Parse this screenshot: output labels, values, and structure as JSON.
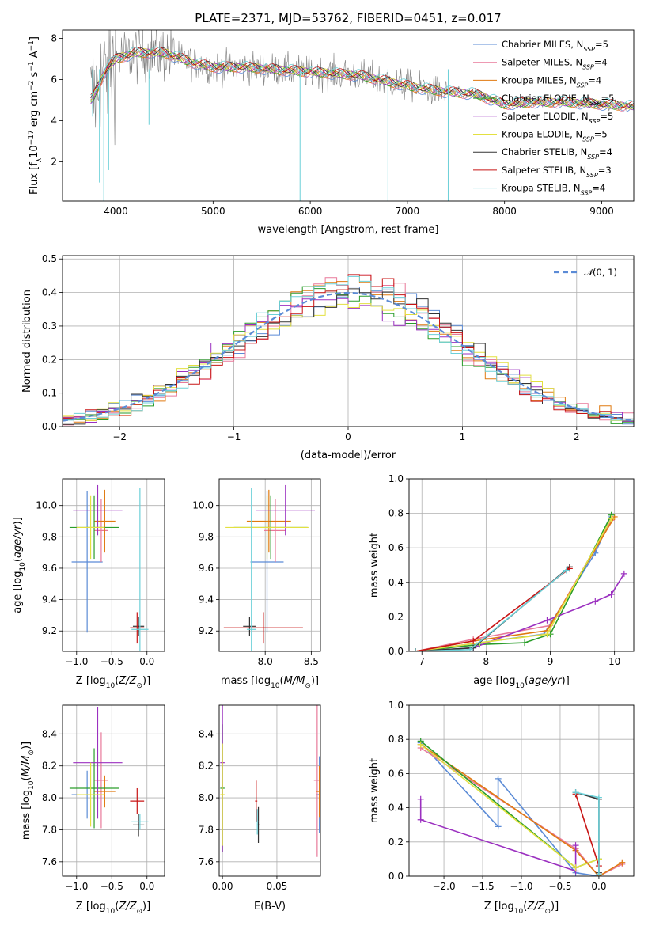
{
  "colors": {
    "Chabrier MILES": "#5b8bd6",
    "Salpeter MILES": "#e8799a",
    "Kroupa MILES": "#e07a10",
    "Chabrier ELODIE": "#2a9d2a",
    "Salpeter ELODIE": "#9b30c0",
    "Kroupa ELODIE": "#e3e040",
    "Chabrier STELIB": "#333333",
    "Salpeter STELIB": "#c81414",
    "Kroupa STELIB": "#6cd0d8"
  },
  "chart_data": [
    {
      "type": "line",
      "title": "PLATE=2371, MJD=53762, FIBERID=0451, z=0.017",
      "xlabel": "wavelength [Angstrom, rest frame]",
      "ylabel": "Flux [f_λ 10^-17 erg cm^-2 s^-1 A^-1]",
      "xlim": [
        3450,
        9330
      ],
      "ylim": [
        0.1,
        8.4
      ],
      "xticks": [
        4000,
        5000,
        6000,
        7000,
        8000,
        9000
      ],
      "yticks": [
        2,
        4,
        6,
        8
      ],
      "legend_position": "top-right",
      "legend": [
        "Chabrier MILES, N_SSP=5",
        "Salpeter MILES, N_SSP=4",
        "Kroupa MILES, N_SSP=4",
        "Chabrier ELODIE, N_SSP=5",
        "Salpeter ELODIE, N_SSP=5",
        "Kroupa ELODIE, N_SSP=5",
        "Chabrier STELIB, N_SSP=4",
        "Salpeter STELIB, N_SSP=3",
        "Kroupa STELIB, N_SSP=4"
      ],
      "spectrum_approx": {
        "x": [
          3750,
          3900,
          4000,
          4200,
          4500,
          4800,
          5000,
          5300,
          5600,
          5900,
          6200,
          6500,
          6800,
          7100,
          7400,
          7700,
          8000,
          8300,
          8600,
          9000,
          9300
        ],
        "y": [
          5.0,
          6.5,
          7.0,
          7.3,
          7.3,
          6.8,
          6.6,
          6.6,
          6.5,
          6.4,
          6.3,
          6.2,
          5.9,
          5.6,
          5.4,
          5.3,
          4.8,
          4.9,
          4.9,
          4.8,
          4.7
        ]
      }
    },
    {
      "type": "bar",
      "xlabel": "(data-model)/error",
      "ylabel": "Normed distribution",
      "xlim": [
        -2.5,
        2.5
      ],
      "ylim": [
        0,
        0.51
      ],
      "xticks": [
        -2,
        -1,
        0,
        1,
        2
      ],
      "yticks": [
        0.0,
        0.1,
        0.2,
        0.3,
        0.4,
        0.5
      ],
      "grid": true,
      "legend": [
        "N(0,1)"
      ],
      "legend_position": "top-right",
      "histogram_approx": {
        "bin_edges_range": [
          -2.5,
          2.5
        ],
        "bins": 50
      }
    },
    {
      "type": "scatter",
      "xlabel": "Z [log10(Z/Z_sun)]",
      "ylabel": "age [log10(age/yr)]",
      "xlim": [
        -1.2,
        0.25
      ],
      "ylim": [
        9.07,
        10.17
      ],
      "xticks": [
        -1.0,
        -0.5,
        0.0
      ],
      "yticks": [
        9.2,
        9.4,
        9.6,
        9.8,
        10.0
      ],
      "grid": true,
      "points": [
        {
          "model": "Chabrier MILES",
          "x": -0.85,
          "y": 9.64
        },
        {
          "model": "Salpeter MILES",
          "x": -0.65,
          "y": 9.84
        },
        {
          "model": "Kroupa MILES",
          "x": -0.6,
          "y": 9.9
        },
        {
          "model": "Chabrier ELODIE",
          "x": -0.75,
          "y": 9.86
        },
        {
          "model": "Salpeter ELODIE",
          "x": -0.7,
          "y": 9.97
        },
        {
          "model": "Kroupa ELODIE",
          "x": -0.8,
          "y": 9.86
        },
        {
          "model": "Chabrier STELIB",
          "x": -0.12,
          "y": 9.23
        },
        {
          "model": "Salpeter STELIB",
          "x": -0.14,
          "y": 9.22
        },
        {
          "model": "Kroupa STELIB",
          "x": -0.1,
          "y": 9.21
        }
      ]
    },
    {
      "type": "scatter",
      "xlabel": "mass [log10(M/M_sun)]",
      "ylabel": "",
      "xlim": [
        7.5,
        8.6
      ],
      "ylim": [
        9.07,
        10.17
      ],
      "xticks": [
        8.0,
        8.5
      ],
      "yticks": [
        9.2,
        9.4,
        9.6,
        9.8,
        10.0
      ],
      "grid": true,
      "points": [
        {
          "model": "Chabrier MILES",
          "x": 8.02,
          "y": 9.64
        },
        {
          "model": "Salpeter MILES",
          "x": 8.11,
          "y": 9.84
        },
        {
          "model": "Kroupa MILES",
          "x": 8.04,
          "y": 9.9
        },
        {
          "model": "Chabrier ELODIE",
          "x": 8.06,
          "y": 9.86
        },
        {
          "model": "Salpeter ELODIE",
          "x": 8.22,
          "y": 9.97
        },
        {
          "model": "Kroupa ELODIE",
          "x": 8.02,
          "y": 9.86
        },
        {
          "model": "Chabrier STELIB",
          "x": 7.83,
          "y": 9.23
        },
        {
          "model": "Salpeter STELIB",
          "x": 7.98,
          "y": 9.22
        },
        {
          "model": "Kroupa STELIB",
          "x": 7.85,
          "y": 9.21
        }
      ]
    },
    {
      "type": "line",
      "xlabel": "age [log10(age/yr)]",
      "ylabel": "mass weight",
      "xlim": [
        6.8,
        10.3
      ],
      "ylim": [
        0,
        1.0
      ],
      "xticks": [
        7,
        8,
        9,
        10
      ],
      "yticks": [
        0.0,
        0.2,
        0.4,
        0.6,
        0.8,
        1.0
      ],
      "grid": true,
      "series": [
        {
          "model": "Chabrier MILES",
          "x": [
            6.9,
            7.9,
            8.9,
            9.7,
            9.95
          ],
          "y": [
            0.0,
            0.05,
            0.1,
            0.57,
            0.78
          ]
        },
        {
          "model": "Salpeter MILES",
          "x": [
            6.9,
            7.8,
            9.0,
            9.95
          ],
          "y": [
            0.0,
            0.07,
            0.15,
            0.76
          ]
        },
        {
          "model": "Kroupa MILES",
          "x": [
            6.9,
            7.8,
            8.95,
            10.0
          ],
          "y": [
            0.0,
            0.06,
            0.12,
            0.78
          ]
        },
        {
          "model": "Chabrier ELODIE",
          "x": [
            6.9,
            7.9,
            8.6,
            9.0,
            9.95
          ],
          "y": [
            0.0,
            0.04,
            0.05,
            0.1,
            0.79
          ]
        },
        {
          "model": "Salpeter ELODIE",
          "x": [
            6.9,
            7.8,
            8.95,
            9.7,
            9.95,
            10.15
          ],
          "y": [
            0.0,
            0.02,
            0.18,
            0.29,
            0.33,
            0.45
          ]
        },
        {
          "model": "Kroupa ELODIE",
          "x": [
            6.9,
            7.9,
            8.95,
            9.95
          ],
          "y": [
            0.0,
            0.05,
            0.1,
            0.77
          ]
        },
        {
          "model": "Chabrier STELIB",
          "x": [
            6.9,
            7.8,
            9.3
          ],
          "y": [
            0.0,
            0.02,
            0.49
          ]
        },
        {
          "model": "Salpeter STELIB",
          "x": [
            6.9,
            7.8,
            9.3
          ],
          "y": [
            0.0,
            0.06,
            0.48
          ]
        },
        {
          "model": "Kroupa STELIB",
          "x": [
            6.9,
            7.75,
            9.25
          ],
          "y": [
            0.0,
            0.01,
            0.47
          ]
        }
      ]
    },
    {
      "type": "scatter",
      "xlabel": "Z [log10(Z/Z_sun)]",
      "ylabel": "mass [log10(M/M_sun)]",
      "xlim": [
        -1.2,
        0.25
      ],
      "ylim": [
        7.51,
        8.58
      ],
      "xticks": [
        -1.0,
        -0.5,
        0.0
      ],
      "yticks": [
        7.6,
        7.8,
        8.0,
        8.2,
        8.4
      ],
      "grid": true,
      "points": [
        {
          "model": "Chabrier MILES",
          "x": -0.85,
          "y": 8.02
        },
        {
          "model": "Salpeter MILES",
          "x": -0.65,
          "y": 8.11
        },
        {
          "model": "Kroupa MILES",
          "x": -0.6,
          "y": 8.04
        },
        {
          "model": "Chabrier ELODIE",
          "x": -0.75,
          "y": 8.06
        },
        {
          "model": "Salpeter ELODIE",
          "x": -0.7,
          "y": 8.22
        },
        {
          "model": "Kroupa ELODIE",
          "x": -0.8,
          "y": 8.02
        },
        {
          "model": "Chabrier STELIB",
          "x": -0.12,
          "y": 7.83
        },
        {
          "model": "Salpeter STELIB",
          "x": -0.14,
          "y": 7.98
        },
        {
          "model": "Kroupa STELIB",
          "x": -0.1,
          "y": 7.85
        }
      ]
    },
    {
      "type": "scatter",
      "xlabel": "E(B-V)",
      "ylabel": "",
      "xlim": [
        -0.003,
        0.09
      ],
      "ylim": [
        7.51,
        8.58
      ],
      "xticks": [
        0.0,
        0.05
      ],
      "yticks": [
        7.6,
        7.8,
        8.0,
        8.2,
        8.4
      ],
      "grid": true,
      "points": [
        {
          "model": "Chabrier MILES",
          "x": 0.089,
          "y": 8.02
        },
        {
          "model": "Salpeter MILES",
          "x": 0.087,
          "y": 8.11
        },
        {
          "model": "Kroupa MILES",
          "x": 0.089,
          "y": 8.04
        },
        {
          "model": "Chabrier ELODIE",
          "x": 0.0,
          "y": 8.06
        },
        {
          "model": "Salpeter ELODIE",
          "x": 0.0,
          "y": 8.22
        },
        {
          "model": "Kroupa ELODIE",
          "x": 0.0,
          "y": 8.02
        },
        {
          "model": "Chabrier STELIB",
          "x": 0.033,
          "y": 7.83
        },
        {
          "model": "Salpeter STELIB",
          "x": 0.031,
          "y": 7.98
        },
        {
          "model": "Kroupa STELIB",
          "x": 0.032,
          "y": 7.85
        }
      ]
    },
    {
      "type": "line",
      "xlabel": "Z [log10(Z/Z_sun)]",
      "ylabel": "mass weight",
      "xlim": [
        -2.45,
        0.45
      ],
      "ylim": [
        0,
        1.0
      ],
      "xticks": [
        -2.0,
        -1.5,
        -1.0,
        -0.5,
        0.0
      ],
      "yticks": [
        0.0,
        0.2,
        0.4,
        0.6,
        0.8,
        1.0
      ],
      "grid": true,
      "series": [
        {
          "model": "Chabrier MILES",
          "x": [
            -2.3,
            -1.3,
            -1.3,
            -0.3,
            0.0
          ],
          "y": [
            0.78,
            0.29,
            0.57,
            0.02,
            0.0
          ]
        },
        {
          "model": "Salpeter MILES",
          "x": [
            -2.3,
            -0.3,
            0.0,
            0.3
          ],
          "y": [
            0.75,
            0.16,
            0.0,
            0.07
          ]
        },
        {
          "model": "Kroupa MILES",
          "x": [
            -2.3,
            -0.3,
            0.0,
            0.3
          ],
          "y": [
            0.77,
            0.15,
            0.0,
            0.08
          ]
        },
        {
          "model": "Chabrier ELODIE",
          "x": [
            -2.3,
            -0.3,
            0.0
          ],
          "y": [
            0.79,
            0.05,
            0.1
          ]
        },
        {
          "model": "Salpeter ELODIE",
          "x": [
            -2.3,
            -2.3,
            -0.3,
            -0.3
          ],
          "y": [
            0.45,
            0.33,
            0.03,
            0.18
          ]
        },
        {
          "model": "Kroupa ELODIE",
          "x": [
            -2.3,
            -0.3,
            0.0
          ],
          "y": [
            0.77,
            0.05,
            0.1
          ]
        },
        {
          "model": "Chabrier STELIB",
          "x": [
            -0.3,
            0.0,
            0.0
          ],
          "y": [
            0.49,
            0.45,
            0.02
          ]
        },
        {
          "model": "Salpeter STELIB",
          "x": [
            -0.3,
            0.0
          ],
          "y": [
            0.48,
            0.06
          ]
        },
        {
          "model": "Kroupa STELIB",
          "x": [
            -0.3,
            0.0,
            0.0
          ],
          "y": [
            0.49,
            0.46,
            0.01
          ]
        }
      ]
    }
  ]
}
